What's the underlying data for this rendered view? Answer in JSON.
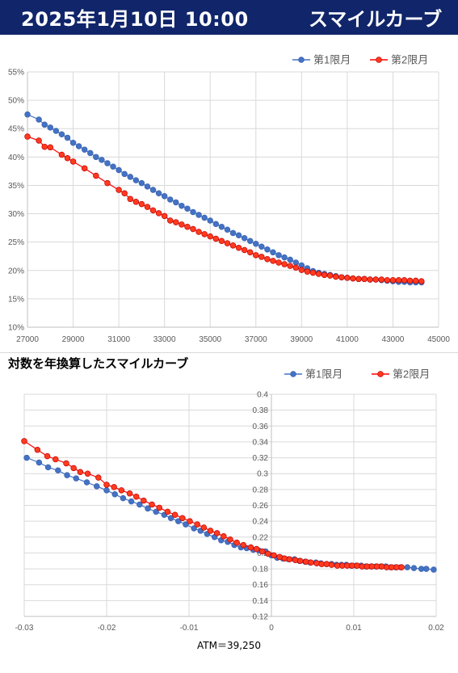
{
  "header": {
    "date": "2025年1月10日 10:00",
    "title": "スマイルカーブ"
  },
  "colors": {
    "series1": "#4472c4",
    "series2": "#ff0000",
    "series2_fill": "#ff3b1f",
    "header_bg": "#10256a"
  },
  "chart_data": [
    {
      "type": "scatter",
      "title": "",
      "xlabel": "",
      "ylabel": "",
      "xlim": [
        27000,
        45000
      ],
      "ylim": [
        0.1,
        0.55
      ],
      "x_ticks": [
        "27000",
        "29000",
        "31000",
        "33000",
        "35000",
        "37000",
        "39000",
        "41000",
        "43000",
        "45000"
      ],
      "y_ticks": [
        "10%",
        "15%",
        "20%",
        "25%",
        "30%",
        "35%",
        "40%",
        "45%",
        "50%",
        "55%"
      ],
      "grid": true,
      "legend": "top-right",
      "series": [
        {
          "name": "第1限月",
          "points": [
            [
              27000,
              0.475
            ],
            [
              27500,
              0.466
            ],
            [
              27750,
              0.457
            ],
            [
              28000,
              0.452
            ],
            [
              28250,
              0.446
            ],
            [
              28500,
              0.44
            ],
            [
              28750,
              0.434
            ],
            [
              29000,
              0.425
            ],
            [
              29250,
              0.419
            ],
            [
              29500,
              0.413
            ],
            [
              29750,
              0.407
            ],
            [
              30000,
              0.4
            ],
            [
              30250,
              0.395
            ],
            [
              30500,
              0.389
            ],
            [
              30750,
              0.383
            ],
            [
              31000,
              0.377
            ],
            [
              31250,
              0.37
            ],
            [
              31500,
              0.365
            ],
            [
              31750,
              0.359
            ],
            [
              32000,
              0.354
            ],
            [
              32250,
              0.348
            ],
            [
              32500,
              0.342
            ],
            [
              32750,
              0.336
            ],
            [
              33000,
              0.331
            ],
            [
              33250,
              0.325
            ],
            [
              33500,
              0.32
            ],
            [
              33750,
              0.314
            ],
            [
              34000,
              0.309
            ],
            [
              34250,
              0.303
            ],
            [
              34500,
              0.298
            ],
            [
              34750,
              0.293
            ],
            [
              35000,
              0.288
            ],
            [
              35250,
              0.282
            ],
            [
              35500,
              0.277
            ],
            [
              35750,
              0.272
            ],
            [
              36000,
              0.266
            ],
            [
              36250,
              0.262
            ],
            [
              36500,
              0.257
            ],
            [
              36750,
              0.252
            ],
            [
              37000,
              0.247
            ],
            [
              37250,
              0.242
            ],
            [
              37500,
              0.237
            ],
            [
              37750,
              0.232
            ],
            [
              38000,
              0.227
            ],
            [
              38250,
              0.223
            ],
            [
              38500,
              0.219
            ],
            [
              38750,
              0.214
            ],
            [
              39000,
              0.209
            ],
            [
              39250,
              0.204
            ],
            [
              39500,
              0.199
            ],
            [
              39750,
              0.196
            ],
            [
              40000,
              0.194
            ],
            [
              40250,
              0.192
            ],
            [
              40500,
              0.19
            ],
            [
              40750,
              0.188
            ],
            [
              41000,
              0.187
            ],
            [
              41250,
              0.186
            ],
            [
              41500,
              0.185
            ],
            [
              41750,
              0.185
            ],
            [
              42000,
              0.184
            ],
            [
              42250,
              0.184
            ],
            [
              42500,
              0.183
            ],
            [
              42750,
              0.182
            ],
            [
              43000,
              0.181
            ],
            [
              43250,
              0.18
            ],
            [
              43500,
              0.18
            ],
            [
              43750,
              0.179
            ],
            [
              44000,
              0.179
            ],
            [
              44250,
              0.179
            ]
          ]
        },
        {
          "name": "第2限月",
          "points": [
            [
              27000,
              0.436
            ],
            [
              27500,
              0.429
            ],
            [
              27750,
              0.418
            ],
            [
              28000,
              0.417
            ],
            [
              28500,
              0.404
            ],
            [
              28750,
              0.398
            ],
            [
              29000,
              0.392
            ],
            [
              29500,
              0.38
            ],
            [
              30000,
              0.367
            ],
            [
              30500,
              0.354
            ],
            [
              31000,
              0.342
            ],
            [
              31250,
              0.336
            ],
            [
              31500,
              0.326
            ],
            [
              31750,
              0.321
            ],
            [
              32000,
              0.317
            ],
            [
              32250,
              0.312
            ],
            [
              32500,
              0.306
            ],
            [
              32750,
              0.301
            ],
            [
              33000,
              0.296
            ],
            [
              33250,
              0.288
            ],
            [
              33500,
              0.285
            ],
            [
              33750,
              0.281
            ],
            [
              34000,
              0.277
            ],
            [
              34250,
              0.273
            ],
            [
              34500,
              0.268
            ],
            [
              34750,
              0.264
            ],
            [
              35000,
              0.26
            ],
            [
              35250,
              0.256
            ],
            [
              35500,
              0.252
            ],
            [
              35750,
              0.248
            ],
            [
              36000,
              0.244
            ],
            [
              36250,
              0.24
            ],
            [
              36500,
              0.236
            ],
            [
              36750,
              0.232
            ],
            [
              37000,
              0.227
            ],
            [
              37250,
              0.224
            ],
            [
              37500,
              0.22
            ],
            [
              37750,
              0.217
            ],
            [
              38000,
              0.214
            ],
            [
              38250,
              0.211
            ],
            [
              38500,
              0.208
            ],
            [
              38750,
              0.205
            ],
            [
              39000,
              0.201
            ],
            [
              39250,
              0.198
            ],
            [
              39500,
              0.196
            ],
            [
              39750,
              0.194
            ],
            [
              40000,
              0.192
            ],
            [
              40250,
              0.191
            ],
            [
              40500,
              0.189
            ],
            [
              40750,
              0.188
            ],
            [
              41000,
              0.187
            ],
            [
              41250,
              0.186
            ],
            [
              41500,
              0.185
            ],
            [
              41750,
              0.185
            ],
            [
              42000,
              0.184
            ],
            [
              42250,
              0.184
            ],
            [
              42500,
              0.184
            ],
            [
              42750,
              0.183
            ],
            [
              43000,
              0.183
            ],
            [
              43250,
              0.183
            ],
            [
              43500,
              0.183
            ],
            [
              43750,
              0.182
            ],
            [
              44000,
              0.182
            ],
            [
              44250,
              0.181
            ]
          ]
        }
      ]
    },
    {
      "type": "scatter",
      "title": "対数を年換算したスマイルカーブ",
      "xlabel": "",
      "ylabel": "",
      "xlim": [
        -0.03,
        0.02
      ],
      "ylim": [
        0.12,
        0.4
      ],
      "x_ticks": [
        "-0.03",
        "-0.02",
        "-0.01",
        "0",
        "0.01",
        "0.02"
      ],
      "y_ticks": [
        "0.12",
        "0.14",
        "0.16",
        "0.18",
        "0.2",
        "0.22",
        "0.24",
        "0.26",
        "0.28",
        "0.3",
        "0.32",
        "0.34",
        "0.36",
        "0.38",
        "0.4"
      ],
      "grid": true,
      "legend": "top-right",
      "annotation": "ATM＝39,250",
      "series": [
        {
          "name": "第1限月",
          "points": [
            [
              -0.0297,
              0.32
            ],
            [
              -0.0282,
              0.314
            ],
            [
              -0.0271,
              0.308
            ],
            [
              -0.0259,
              0.304
            ],
            [
              -0.0248,
              0.298
            ],
            [
              -0.0237,
              0.294
            ],
            [
              -0.0224,
              0.289
            ],
            [
              -0.0212,
              0.284
            ],
            [
              -0.02,
              0.279
            ],
            [
              -0.019,
              0.274
            ],
            [
              -0.018,
              0.269
            ],
            [
              -0.017,
              0.265
            ],
            [
              -0.016,
              0.261
            ],
            [
              -0.015,
              0.256
            ],
            [
              -0.014,
              0.252
            ],
            [
              -0.013,
              0.248
            ],
            [
              -0.0122,
              0.244
            ],
            [
              -0.0113,
              0.24
            ],
            [
              -0.0104,
              0.236
            ],
            [
              -0.0094,
              0.231
            ],
            [
              -0.0086,
              0.228
            ],
            [
              -0.0078,
              0.224
            ],
            [
              -0.0069,
              0.22
            ],
            [
              -0.0061,
              0.216
            ],
            [
              -0.0053,
              0.214
            ],
            [
              -0.0045,
              0.21
            ],
            [
              -0.0037,
              0.207
            ],
            [
              -0.003,
              0.206
            ],
            [
              -0.0022,
              0.204
            ],
            [
              -0.0015,
              0.203
            ],
            [
              -0.0007,
              0.202
            ],
            [
              0.0,
              0.197
            ],
            [
              0.0007,
              0.194
            ],
            [
              0.0014,
              0.193
            ],
            [
              0.0021,
              0.192
            ],
            [
              0.0028,
              0.192
            ],
            [
              0.0034,
              0.19
            ],
            [
              0.0041,
              0.189
            ],
            [
              0.0047,
              0.188
            ],
            [
              0.0054,
              0.188
            ],
            [
              0.006,
              0.187
            ],
            [
              0.0067,
              0.186
            ],
            [
              0.0073,
              0.186
            ],
            [
              0.0079,
              0.185
            ],
            [
              0.0085,
              0.185
            ],
            [
              0.0091,
              0.185
            ],
            [
              0.0097,
              0.184
            ],
            [
              0.0103,
              0.184
            ],
            [
              0.0109,
              0.184
            ],
            [
              0.0115,
              0.183
            ],
            [
              0.0121,
              0.183
            ],
            [
              0.0127,
              0.183
            ],
            [
              0.0133,
              0.183
            ],
            [
              0.0139,
              0.183
            ],
            [
              0.0145,
              0.182
            ],
            [
              0.0151,
              0.182
            ],
            [
              0.0157,
              0.182
            ],
            [
              0.0165,
              0.182
            ],
            [
              0.0173,
              0.181
            ],
            [
              0.0182,
              0.18
            ],
            [
              0.0188,
              0.18
            ],
            [
              0.0197,
              0.179
            ]
          ]
        },
        {
          "name": "第2限月",
          "points": [
            [
              -0.03,
              0.341
            ],
            [
              -0.0284,
              0.33
            ],
            [
              -0.0272,
              0.322
            ],
            [
              -0.0262,
              0.318
            ],
            [
              -0.0249,
              0.313
            ],
            [
              -0.024,
              0.307
            ],
            [
              -0.0232,
              0.302
            ],
            [
              -0.0223,
              0.3
            ],
            [
              -0.021,
              0.295
            ],
            [
              -0.02,
              0.286
            ],
            [
              -0.0191,
              0.283
            ],
            [
              -0.0182,
              0.279
            ],
            [
              -0.0172,
              0.275
            ],
            [
              -0.0164,
              0.271
            ],
            [
              -0.0155,
              0.266
            ],
            [
              -0.0145,
              0.261
            ],
            [
              -0.0136,
              0.257
            ],
            [
              -0.0126,
              0.252
            ],
            [
              -0.0117,
              0.248
            ],
            [
              -0.0108,
              0.244
            ],
            [
              -0.0099,
              0.24
            ],
            [
              -0.009,
              0.236
            ],
            [
              -0.0082,
              0.232
            ],
            [
              -0.0074,
              0.228
            ],
            [
              -0.0066,
              0.225
            ],
            [
              -0.0058,
              0.221
            ],
            [
              -0.005,
              0.217
            ],
            [
              -0.0042,
              0.213
            ],
            [
              -0.0034,
              0.21
            ],
            [
              -0.0025,
              0.207
            ],
            [
              -0.0018,
              0.205
            ],
            [
              -0.0011,
              0.202
            ],
            [
              -0.0004,
              0.199
            ],
            [
              0.0003,
              0.197
            ],
            [
              0.001,
              0.195
            ],
            [
              0.0016,
              0.193
            ],
            [
              0.0022,
              0.192
            ],
            [
              0.0029,
              0.191
            ],
            [
              0.0035,
              0.19
            ],
            [
              0.0042,
              0.189
            ],
            [
              0.0048,
              0.188
            ],
            [
              0.0055,
              0.187
            ],
            [
              0.0061,
              0.186
            ],
            [
              0.0067,
              0.186
            ],
            [
              0.0073,
              0.185
            ],
            [
              0.008,
              0.184
            ],
            [
              0.0086,
              0.184
            ],
            [
              0.0092,
              0.184
            ],
            [
              0.0098,
              0.184
            ],
            [
              0.0104,
              0.184
            ],
            [
              0.011,
              0.183
            ],
            [
              0.0116,
              0.183
            ],
            [
              0.0122,
              0.183
            ],
            [
              0.0128,
              0.183
            ],
            [
              0.0134,
              0.183
            ],
            [
              0.014,
              0.182
            ],
            [
              0.0146,
              0.182
            ],
            [
              0.0152,
              0.182
            ],
            [
              0.0158,
              0.182
            ]
          ]
        }
      ]
    }
  ]
}
